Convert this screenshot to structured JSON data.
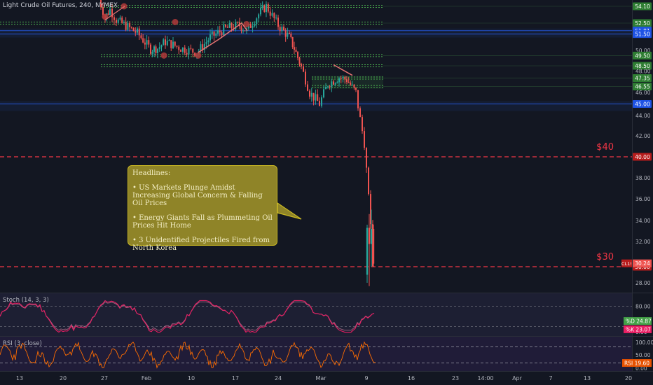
{
  "header": {
    "symbol": "Light Crude Oil Futures, 240, NYMEX"
  },
  "colors": {
    "background": "#131722",
    "bull": "#26a69a",
    "bear": "#ef5350",
    "green_level": "#4caf50",
    "blue_level": "#2962ff",
    "red_level": "#f23645",
    "stoch_k": "#e91e63",
    "rsi": "#ff6d00",
    "annotation_fill": "#8f8428"
  },
  "chart_data": [
    {
      "type": "candlestick",
      "title": "Light Crude Oil Futures, 240, NYMEX",
      "y_ticks": [
        "54.10",
        "52.50",
        "51.81",
        "51.50",
        "50.00",
        "49.50",
        "48.50",
        "48.00",
        "47.35",
        "46.55",
        "46.00",
        "45.00",
        "44.00",
        "42.00",
        "40.00",
        "38.00",
        "36.00",
        "34.00",
        "32.00",
        "30.24",
        "30.00",
        "28.00"
      ],
      "ylim": [
        26.6,
        55.5
      ],
      "x_ticks": [
        "13",
        "20",
        "27",
        "Feb",
        "10",
        "17",
        "24",
        "Mar",
        "9",
        "16",
        "23",
        "14:00",
        "Apr",
        "7",
        "13",
        "20"
      ],
      "price_path": [
        {
          "date": "Jan 24",
          "price": 55.5
        },
        {
          "date": "Jan 27",
          "price": 53.0
        },
        {
          "date": "Jan 28",
          "price": 53.8
        },
        {
          "date": "Jan 29",
          "price": 52.8
        },
        {
          "date": "Jan 31",
          "price": 51.6
        },
        {
          "date": "Feb 3",
          "price": 50.1
        },
        {
          "date": "Feb 4",
          "price": 50.2
        },
        {
          "date": "Feb 5",
          "price": 50.8
        },
        {
          "date": "Feb 7",
          "price": 50.2
        },
        {
          "date": "Feb 10",
          "price": 49.8
        },
        {
          "date": "Feb 12",
          "price": 51.2
        },
        {
          "date": "Feb 14",
          "price": 52.0
        },
        {
          "date": "Feb 17",
          "price": 52.3
        },
        {
          "date": "Feb 18",
          "price": 51.8
        },
        {
          "date": "Feb 20",
          "price": 53.6
        },
        {
          "date": "Feb 21",
          "price": 54.1
        },
        {
          "date": "Feb 23",
          "price": 52.3
        },
        {
          "date": "Feb 25",
          "price": 51.2
        },
        {
          "date": "Feb 26",
          "price": 50.2
        },
        {
          "date": "Feb 27",
          "price": 48.4
        },
        {
          "date": "Feb 28",
          "price": 46.0
        },
        {
          "date": "Mar 1",
          "price": 45.0
        },
        {
          "date": "Mar 2",
          "price": 46.8
        },
        {
          "date": "Mar 3",
          "price": 47.4
        },
        {
          "date": "Mar 4",
          "price": 47.2
        },
        {
          "date": "Mar 5",
          "price": 46.0
        },
        {
          "date": "Mar 6",
          "price": 41.3
        },
        {
          "date": "Mar 9",
          "price": 30.24
        }
      ],
      "levels": [
        {
          "label": "54.10",
          "value": 54.1,
          "kind": "support",
          "from": "Jan 26",
          "to": "end"
        },
        {
          "label": "52.50",
          "value": 52.5,
          "kind": "support",
          "from": "start",
          "to": "end"
        },
        {
          "label": "51.81",
          "value": 51.81,
          "kind": "zone",
          "from": "start",
          "to": "end"
        },
        {
          "label": "51.50",
          "value": 51.5,
          "kind": "zone",
          "from": "start",
          "to": "end"
        },
        {
          "label": "49.50",
          "value": 49.5,
          "kind": "support",
          "from": "Jan 26",
          "to": "end"
        },
        {
          "label": "48.50",
          "value": 48.5,
          "kind": "support",
          "from": "Jan 26",
          "to": "end"
        },
        {
          "label": "47.35",
          "value": 47.35,
          "kind": "support",
          "from": "Mar 2",
          "to": "end"
        },
        {
          "label": "46.55",
          "value": 46.55,
          "kind": "support",
          "from": "Mar 2",
          "to": "end"
        },
        {
          "label": "45.00",
          "value": 45.0,
          "kind": "zone",
          "from": "start",
          "to": "end"
        },
        {
          "label": "40.00",
          "value": 40.0,
          "kind": "target",
          "from": "start",
          "to": "end"
        },
        {
          "label": "30.00",
          "value": 30.0,
          "kind": "target",
          "from": "start",
          "to": "end"
        }
      ],
      "last_price": {
        "label": "CL1!",
        "value": "30.24"
      },
      "annotations": [
        {
          "text": "$40",
          "value": 40.0
        },
        {
          "text": "$30",
          "value": 30.0
        }
      ]
    },
    {
      "type": "line",
      "title": "Stoch (14, 3, 3)",
      "y_ticks": [
        "80.00",
        "0.00"
      ],
      "ylim": [
        0,
        100
      ],
      "series": [
        {
          "name": "%D",
          "last": "24.87"
        },
        {
          "name": "%K",
          "last": "23.07"
        }
      ],
      "labels": {
        "d": "%D",
        "k": "%K"
      }
    },
    {
      "type": "line",
      "title": "RSI (3, close)",
      "y_ticks": [
        "100.00",
        "50.00",
        "0.00"
      ],
      "ylim": [
        0,
        100
      ],
      "series": [
        {
          "name": "RSI",
          "last": "19.60"
        }
      ]
    }
  ],
  "headlines": {
    "title": "Headlines:",
    "items": [
      "• US Markets Plunge Amidst Increasing Global Concern & Falling Oil Prices",
      "• Energy Giants Fall as Plummeting Oil Prices Hit Home",
      "• 3 Unidentified Projectiles Fired from North Korea"
    ]
  }
}
